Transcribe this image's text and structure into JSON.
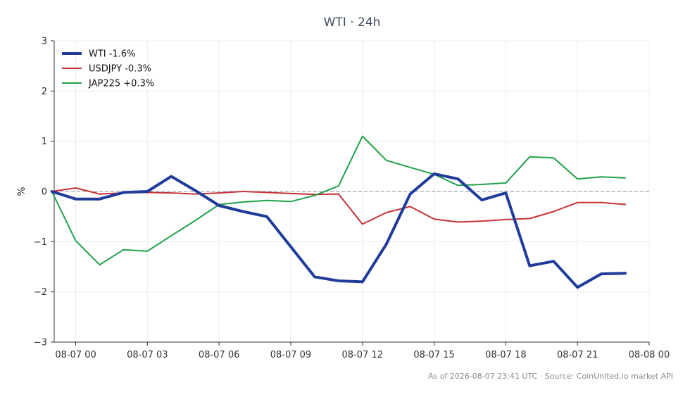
{
  "chart_data": {
    "type": "line",
    "title": "WTI · 24h",
    "ylabel": "%",
    "xlabel": "",
    "ylim": [
      -3,
      3
    ],
    "xlim": [
      -0.9,
      24.0
    ],
    "yticks": [
      3,
      2,
      1,
      0,
      -1,
      -2,
      -3
    ],
    "ytick_labels": [
      "3",
      "2",
      "1",
      "0",
      "−1",
      "−2",
      "−3"
    ],
    "xticks": [
      0,
      3,
      6,
      9,
      12,
      15,
      18,
      21,
      24
    ],
    "xtick_labels": [
      "08-07 00",
      "08-07 03",
      "08-07 06",
      "08-07 09",
      "08-07 12",
      "08-07 15",
      "08-07 18",
      "08-07 21",
      "08-08 00"
    ],
    "x": [
      -1,
      0,
      1,
      2,
      3,
      4,
      5,
      6,
      7,
      8,
      9,
      10,
      11,
      12,
      13,
      14,
      15,
      16,
      17,
      18,
      19,
      20,
      21,
      22,
      23
    ],
    "grid": true,
    "zero_line": true,
    "legend_position": "top-left",
    "series": [
      {
        "name": "WTI -1.6%",
        "color": "#1f3c9b",
        "width": 4,
        "values": [
          0.0,
          -0.15,
          -0.15,
          -0.02,
          0.0,
          0.3,
          0.02,
          -0.28,
          -0.4,
          -0.5,
          -1.1,
          -1.7,
          -1.78,
          -1.8,
          -1.05,
          -0.05,
          0.35,
          0.25,
          -0.17,
          -0.03,
          -1.48,
          -1.39,
          -1.91,
          -1.64,
          -1.63
        ]
      },
      {
        "name": "USDJPY -0.3%",
        "color": "#c73235",
        "width": 2,
        "values": [
          0.0,
          0.07,
          -0.05,
          -0.03,
          -0.02,
          -0.03,
          -0.05,
          -0.03,
          0.0,
          -0.02,
          -0.04,
          -0.06,
          -0.05,
          -0.65,
          -0.42,
          -0.3,
          -0.55,
          -0.61,
          -0.59,
          -0.56,
          -0.54,
          -0.4,
          -0.22,
          -0.22,
          -0.26
        ]
      },
      {
        "name": "JAP225 +0.3%",
        "color": "#20a04b",
        "width": 2,
        "values": [
          0.0,
          -0.98,
          -1.46,
          -1.16,
          -1.19,
          -0.88,
          -0.58,
          -0.26,
          -0.21,
          -0.18,
          -0.2,
          -0.08,
          0.11,
          1.1,
          0.62,
          0.48,
          0.34,
          0.12,
          0.14,
          0.17,
          0.69,
          0.67,
          0.25,
          0.29,
          0.27
        ]
      }
    ]
  },
  "footer": "As of 2026-08-07 23:41 UTC · Source: CoinUnited.io market API"
}
